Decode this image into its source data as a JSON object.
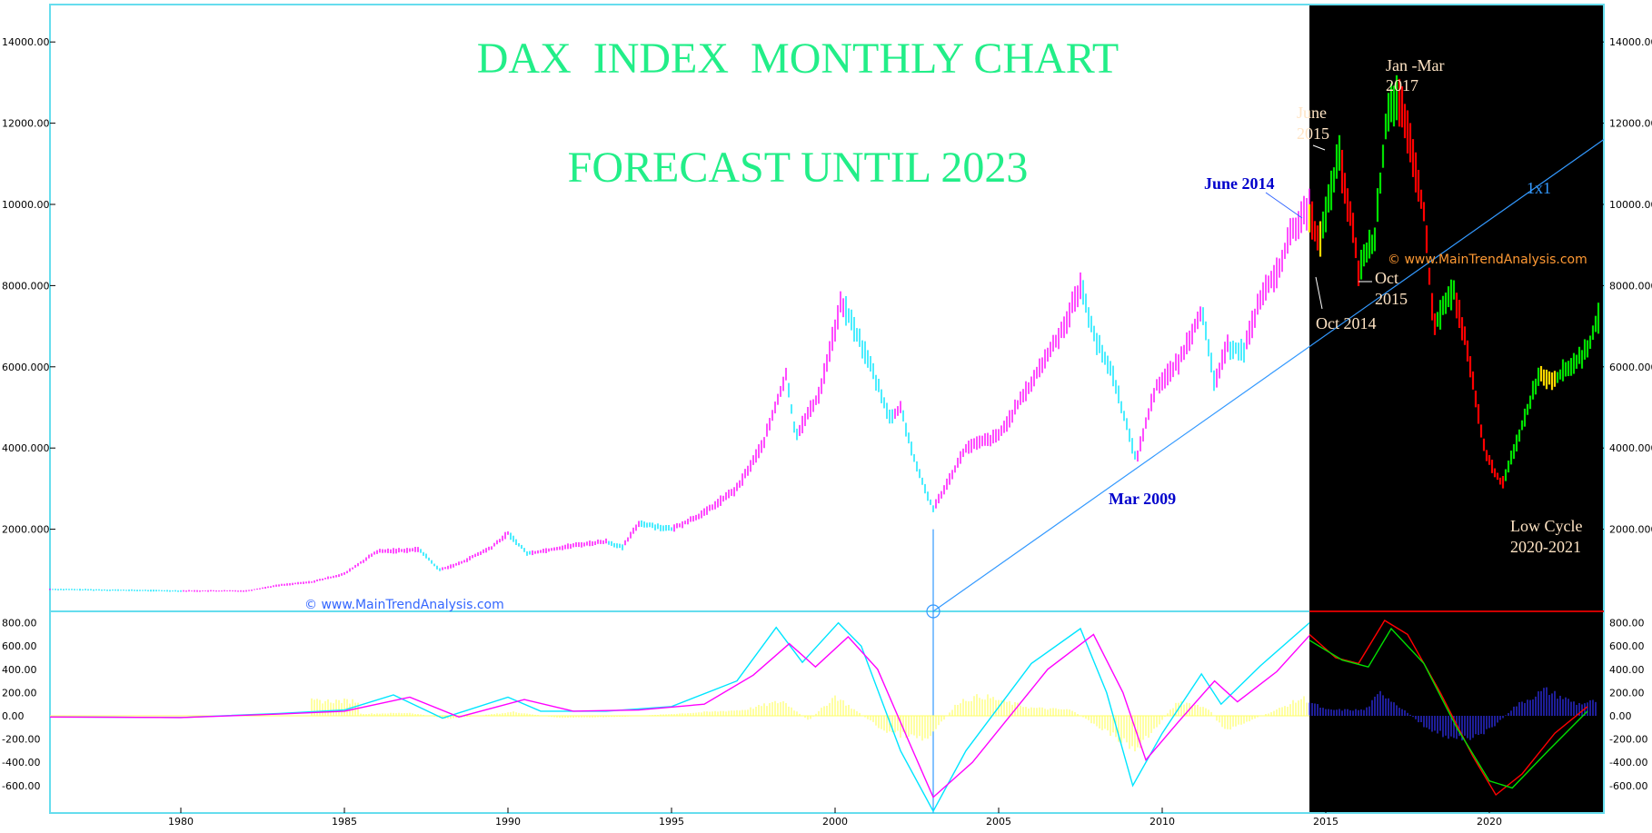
{
  "chart_data": [
    {
      "type": "bar",
      "subtype": "ohlc-price",
      "title": "DAX  INDEX  MONTHLY CHART",
      "subtitle": "FORECAST UNTIL 2023",
      "xlim": [
        1976,
        2023.5
      ],
      "ylim": [
        0,
        14500
      ],
      "x_ticks": [
        "1980",
        "1985",
        "1990",
        "1995",
        "2000",
        "2005",
        "2010",
        "2015",
        "2020"
      ],
      "y_ticks_left": [
        "2000.000",
        "4000.000",
        "6000.000",
        "8000.000",
        "10000.00",
        "12000.00",
        "14000.00"
      ],
      "y_ticks_right": [
        "2000.000",
        "4000.000",
        "6000.000",
        "8000.000",
        "10000.00",
        "12000.00",
        "14000.00"
      ],
      "forecast_start": 2014.5,
      "series": [
        {
          "role": "historical",
          "points": [
            [
              1976.0,
              520
            ],
            [
              1978.0,
              500
            ],
            [
              1980.0,
              480
            ],
            [
              1982.0,
              480
            ],
            [
              1983.0,
              620
            ],
            [
              1984.0,
              700
            ],
            [
              1985.0,
              900
            ],
            [
              1986.0,
              1450
            ],
            [
              1987.3,
              1500
            ],
            [
              1987.9,
              1000
            ],
            [
              1988.5,
              1150
            ],
            [
              1989.5,
              1550
            ],
            [
              1990.0,
              1900
            ],
            [
              1990.6,
              1400
            ],
            [
              1992.0,
              1600
            ],
            [
              1993.0,
              1700
            ],
            [
              1993.5,
              1550
            ],
            [
              1994.0,
              2150
            ],
            [
              1995.0,
              2000
            ],
            [
              1996.0,
              2400
            ],
            [
              1997.0,
              3000
            ],
            [
              1997.8,
              4100
            ],
            [
              1998.5,
              5800
            ],
            [
              1998.8,
              4300
            ],
            [
              1999.5,
              5300
            ],
            [
              2000.2,
              7600
            ],
            [
              2000.5,
              7100
            ],
            [
              2001.0,
              6200
            ],
            [
              2001.7,
              4700
            ],
            [
              2002.0,
              5000
            ],
            [
              2002.5,
              3500
            ],
            [
              2003.0,
              2500
            ],
            [
              2003.6,
              3400
            ],
            [
              2004.0,
              4000
            ],
            [
              2005.0,
              4300
            ],
            [
              2006.0,
              5600
            ],
            [
              2007.0,
              7000
            ],
            [
              2007.5,
              8000
            ],
            [
              2008.0,
              6600
            ],
            [
              2008.5,
              5800
            ],
            [
              2008.9,
              4600
            ],
            [
              2009.2,
              3700
            ],
            [
              2009.8,
              5500
            ],
            [
              2010.5,
              6100
            ],
            [
              2011.2,
              7400
            ],
            [
              2011.6,
              5600
            ],
            [
              2012.0,
              6500
            ],
            [
              2012.5,
              6400
            ],
            [
              2013.0,
              7700
            ],
            [
              2013.5,
              8300
            ],
            [
              2014.0,
              9400
            ],
            [
              2014.5,
              9900
            ]
          ]
        },
        {
          "role": "forecast",
          "points": [
            [
              2014.5,
              9800
            ],
            [
              2014.8,
              9000
            ],
            [
              2015.4,
              11200
            ],
            [
              2015.8,
              9500
            ],
            [
              2016.0,
              8400
            ],
            [
              2016.5,
              9200
            ],
            [
              2016.9,
              12400
            ],
            [
              2017.2,
              12700
            ],
            [
              2017.7,
              11000
            ],
            [
              2018.0,
              9800
            ],
            [
              2018.3,
              7000
            ],
            [
              2018.9,
              7900
            ],
            [
              2019.3,
              6500
            ],
            [
              2019.9,
              3800
            ],
            [
              2020.4,
              3100
            ],
            [
              2020.9,
              4300
            ],
            [
              2021.5,
              5800
            ],
            [
              2022.0,
              5700
            ],
            [
              2022.6,
              6100
            ],
            [
              2023.0,
              6400
            ],
            [
              2023.3,
              7200
            ]
          ]
        }
      ],
      "annotations": [
        {
          "text": "June 2014",
          "x": 2014.5,
          "y": 10000,
          "color": "#0000cc"
        },
        {
          "text": "Mar 2009",
          "x": 2009.2,
          "y": 3600,
          "color": "#0000cc"
        },
        {
          "text": "June",
          "x": 2015.4,
          "y": 11600,
          "color": "#ffe4c4"
        },
        {
          "text": "2015",
          "x": 2015.4,
          "y": 11600,
          "color": "#ffe4c4"
        },
        {
          "text": "Jan -Mar",
          "x": 2017.0,
          "y": 13000,
          "color": "#ffe4c4"
        },
        {
          "text": "2017",
          "x": 2017.0,
          "y": 13000,
          "color": "#ffe4c4"
        },
        {
          "text": "Oct",
          "x": 2015.8,
          "y": 8400,
          "color": "#ffe4c4"
        },
        {
          "text": "2015",
          "x": 2015.8,
          "y": 8400,
          "color": "#ffe4c4"
        },
        {
          "text": "Oct 2014",
          "x": 2014.8,
          "y": 8600,
          "color": "#ffe4c4"
        },
        {
          "text": "Low Cycle",
          "x": 2020.4,
          "y": 2800,
          "color": "#ffe4c4"
        },
        {
          "text": "2020-2021",
          "x": 2020.4,
          "y": 2800,
          "color": "#ffe4c4"
        },
        {
          "text": "1x1",
          "x": 2020.0,
          "y": 10000,
          "color": "#3399ff"
        }
      ],
      "trendline": {
        "label": "1x1",
        "from": [
          2003.0,
          0
        ],
        "to": [
          2023.5,
          11600
        ]
      },
      "copyright_lines": [
        "© www.MainTrendAnalysis.com",
        "© www.MainTrendAnalysis.com"
      ],
      "colors": {
        "historical": "#ff00ff",
        "historical_alt": "#00e5ff",
        "forecast_up": "#00e000",
        "forecast_down": "#ff0000",
        "forecast_neutral": "#ffd700",
        "title": "#22ee88",
        "forecast_bg": "#000000",
        "frame": "#66ddee"
      },
      "grid": false,
      "legend": "none"
    },
    {
      "type": "line",
      "subtype": "macd",
      "xlim": [
        1976,
        2023.5
      ],
      "ylim": [
        -800,
        900
      ],
      "y_ticks": [
        "800.00",
        "600.00",
        "400.00",
        "200.00",
        "0.00",
        "-200.00",
        "-400.00",
        "-600.00"
      ],
      "series": [
        {
          "role": "macd-historical",
          "color": "#00e5ff",
          "points": [
            [
              1976,
              -10
            ],
            [
              1980,
              -15
            ],
            [
              1983,
              20
            ],
            [
              1985,
              50
            ],
            [
              1986.5,
              180
            ],
            [
              1988,
              -20
            ],
            [
              1990,
              160
            ],
            [
              1991,
              40
            ],
            [
              1993,
              40
            ],
            [
              1995,
              80
            ],
            [
              1997,
              300
            ],
            [
              1998.2,
              760
            ],
            [
              1999,
              460
            ],
            [
              2000.1,
              800
            ],
            [
              2000.8,
              600
            ],
            [
              2002,
              -300
            ],
            [
              2003,
              -820
            ],
            [
              2004,
              -300
            ],
            [
              2006,
              450
            ],
            [
              2007.5,
              750
            ],
            [
              2008.3,
              200
            ],
            [
              2009.1,
              -600
            ],
            [
              2010,
              -150
            ],
            [
              2011.2,
              360
            ],
            [
              2011.8,
              100
            ],
            [
              2013,
              430
            ],
            [
              2014.5,
              800
            ]
          ]
        },
        {
          "role": "signal-historical",
          "color": "#ff00ff",
          "points": [
            [
              1976,
              -10
            ],
            [
              1980,
              -15
            ],
            [
              1983,
              15
            ],
            [
              1985,
              40
            ],
            [
              1987,
              160
            ],
            [
              1988.5,
              -10
            ],
            [
              1990.5,
              140
            ],
            [
              1992,
              40
            ],
            [
              1994,
              50
            ],
            [
              1996,
              100
            ],
            [
              1997.5,
              350
            ],
            [
              1998.6,
              620
            ],
            [
              1999.4,
              420
            ],
            [
              2000.4,
              680
            ],
            [
              2001.3,
              400
            ],
            [
              2002.3,
              -250
            ],
            [
              2003,
              -700
            ],
            [
              2004.2,
              -400
            ],
            [
              2006.5,
              400
            ],
            [
              2007.9,
              700
            ],
            [
              2008.8,
              200
            ],
            [
              2009.5,
              -380
            ],
            [
              2010.5,
              -50
            ],
            [
              2011.6,
              300
            ],
            [
              2012.3,
              120
            ],
            [
              2013.5,
              380
            ],
            [
              2014.5,
              690
            ]
          ]
        },
        {
          "role": "macd-forecast",
          "color": "#ff0000",
          "points": [
            [
              2014.5,
              700
            ],
            [
              2015.3,
              500
            ],
            [
              2016.0,
              450
            ],
            [
              2016.8,
              820
            ],
            [
              2017.5,
              700
            ],
            [
              2018.5,
              200
            ],
            [
              2019.5,
              -350
            ],
            [
              2020.2,
              -680
            ],
            [
              2021.0,
              -500
            ],
            [
              2022.0,
              -150
            ],
            [
              2023.0,
              80
            ]
          ]
        },
        {
          "role": "signal-forecast",
          "color": "#00e000",
          "points": [
            [
              2014.5,
              650
            ],
            [
              2015.5,
              480
            ],
            [
              2016.3,
              420
            ],
            [
              2017.0,
              750
            ],
            [
              2018.0,
              450
            ],
            [
              2019.0,
              -100
            ],
            [
              2020.0,
              -560
            ],
            [
              2020.7,
              -620
            ],
            [
              2021.8,
              -300
            ],
            [
              2023.0,
              40
            ]
          ]
        },
        {
          "role": "histogram",
          "color_historical": "#ffff66",
          "color_forecast": "#3333ff",
          "points": [
            [
              1985.5,
              20
            ],
            [
              1987,
              30
            ],
            [
              1988.2,
              -30
            ],
            [
              1990.2,
              40
            ],
            [
              1991.5,
              -20
            ],
            [
              1993.5,
              -10
            ],
            [
              1997.2,
              60
            ],
            [
              1998.4,
              150
            ],
            [
              1999.2,
              -50
            ],
            [
              2000.0,
              200
            ],
            [
              2001.5,
              -150
            ],
            [
              2002.8,
              -250
            ],
            [
              2003.8,
              150
            ],
            [
              2004.5,
              200
            ],
            [
              2006.0,
              80
            ],
            [
              2007.2,
              60
            ],
            [
              2008.5,
              -200
            ],
            [
              2009.2,
              -350
            ],
            [
              2010.5,
              150
            ],
            [
              2011.4,
              80
            ],
            [
              2011.9,
              -150
            ],
            [
              2013.5,
              60
            ],
            [
              2014.3,
              180
            ],
            [
              2015.0,
              60
            ],
            [
              2016.2,
              60
            ],
            [
              2016.7,
              240
            ],
            [
              2018.0,
              -100
            ],
            [
              2019.0,
              -250
            ],
            [
              2020.0,
              -150
            ],
            [
              2020.8,
              100
            ],
            [
              2021.7,
              260
            ],
            [
              2022.7,
              120
            ],
            [
              2023.3,
              150
            ]
          ]
        }
      ],
      "grid": false,
      "legend": "none"
    }
  ]
}
